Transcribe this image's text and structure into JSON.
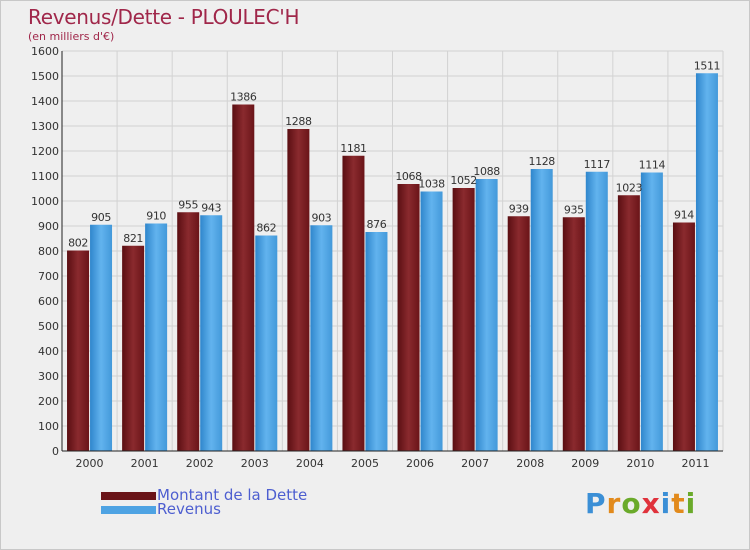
{
  "header": {
    "title": "Revenus/Dette - PLOULEC'H",
    "subtitle": "(en milliers d'€)"
  },
  "legend": {
    "dette_label": "Montant de la Dette",
    "revenus_label": "Revenus"
  },
  "logo": {
    "letters": [
      "P",
      "r",
      "o",
      "x",
      "i",
      "t",
      "i"
    ],
    "colors": [
      "#3b8fd6",
      "#e28a1c",
      "#6aaa2a",
      "#e0323c",
      "#3b8fd6",
      "#e28a1c",
      "#6aaa2a"
    ]
  },
  "colors": {
    "dette": "#7b1e22",
    "revenus": "#4ea3e3",
    "background": "#efefef",
    "grid": "#d2d2d2"
  },
  "chart_data": {
    "type": "bar",
    "title": "Revenus/Dette - PLOULEC'H",
    "ylabel": "(en milliers d'€)",
    "categories": [
      "2000",
      "2001",
      "2002",
      "2003",
      "2004",
      "2005",
      "2006",
      "2007",
      "2008",
      "2009",
      "2010",
      "2011"
    ],
    "series": [
      {
        "name": "Montant de la Dette",
        "values": [
          802,
          821,
          955,
          1386,
          1288,
          1181,
          1068,
          1052,
          939,
          935,
          1023,
          914
        ]
      },
      {
        "name": "Revenus",
        "values": [
          905,
          910,
          943,
          862,
          903,
          876,
          1038,
          1088,
          1128,
          1117,
          1114,
          1511
        ]
      }
    ],
    "ylim": [
      0,
      1600
    ],
    "ytick_step": 100,
    "grid": true,
    "legend_position": "bottom-left"
  }
}
